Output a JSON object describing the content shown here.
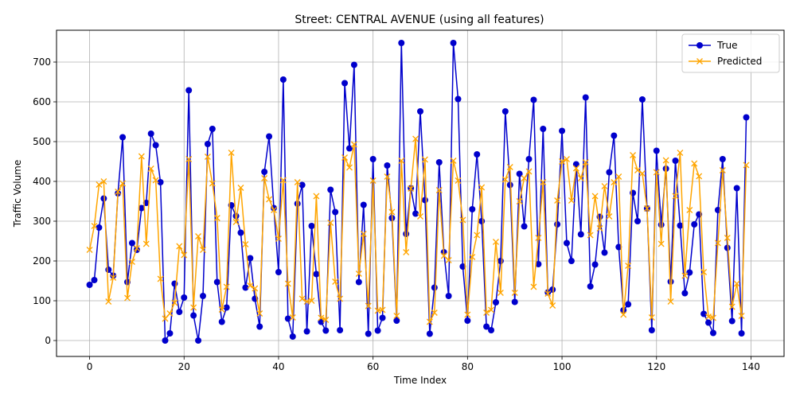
{
  "chart_data": {
    "type": "line",
    "title": "Street: CENTRAL AVENUE (using all features)",
    "xlabel": "Time Index",
    "ylabel": "Traffic Volume",
    "xlim": [
      -7,
      147
    ],
    "ylim": [
      -40,
      780
    ],
    "x_ticks": [
      0,
      20,
      40,
      60,
      80,
      100,
      120,
      140
    ],
    "y_ticks": [
      0,
      100,
      200,
      300,
      400,
      500,
      600,
      700
    ],
    "grid": true,
    "legend_position": "top-right",
    "x": [
      0,
      1,
      2,
      3,
      4,
      5,
      6,
      7,
      8,
      9,
      10,
      11,
      12,
      13,
      14,
      15,
      16,
      17,
      18,
      19,
      20,
      21,
      22,
      23,
      24,
      25,
      26,
      27,
      28,
      29,
      30,
      31,
      32,
      33,
      34,
      35,
      36,
      37,
      38,
      39,
      40,
      41,
      42,
      43,
      44,
      45,
      46,
      47,
      48,
      49,
      50,
      51,
      52,
      53,
      54,
      55,
      56,
      57,
      58,
      59,
      60,
      61,
      62,
      63,
      64,
      65,
      66,
      67,
      68,
      69,
      70,
      71,
      72,
      73,
      74,
      75,
      76,
      77,
      78,
      79,
      80,
      81,
      82,
      83,
      84,
      85,
      86,
      87,
      88,
      89,
      90,
      91,
      92,
      93,
      94,
      95,
      96,
      97,
      98,
      99,
      100,
      101,
      102,
      103,
      104,
      105,
      106,
      107,
      108,
      109,
      110,
      111,
      112,
      113,
      114,
      115,
      116,
      117,
      118,
      119,
      120,
      121,
      122,
      123,
      124,
      125,
      126,
      127,
      128,
      129,
      130,
      131,
      132,
      133,
      134,
      135,
      136,
      137,
      138,
      139
    ],
    "series": [
      {
        "name": "True",
        "color": "#0000cc",
        "marker": "circle",
        "values": [
          140,
          152,
          284,
          357,
          178,
          163,
          370,
          511,
          147,
          245,
          228,
          333,
          346,
          520,
          491,
          398,
          0,
          18,
          143,
          72,
          108,
          629,
          63,
          0,
          112,
          494,
          532,
          147,
          47,
          83,
          340,
          313,
          271,
          133,
          207,
          105,
          35,
          424,
          513,
          333,
          172,
          656,
          55,
          10,
          344,
          391,
          23,
          288,
          167,
          47,
          25,
          379,
          323,
          26,
          647,
          483,
          693,
          147,
          341,
          17,
          456,
          25,
          57,
          440,
          308,
          50,
          748,
          268,
          383,
          319,
          576,
          353,
          17,
          133,
          448,
          222,
          112,
          748,
          607,
          186,
          50,
          330,
          468,
          300,
          35,
          26,
          96,
          200,
          576,
          391,
          97,
          419,
          287,
          456,
          605,
          192,
          532,
          121,
          128,
          292,
          527,
          245,
          200,
          443,
          267,
          611,
          136,
          191,
          311,
          221,
          423,
          515,
          235,
          76,
          91,
          371,
          300,
          606,
          332,
          26,
          477,
          291,
          432,
          148,
          452,
          289,
          119,
          171,
          292,
          317,
          67,
          45,
          19,
          328,
          456,
          233,
          49,
          383,
          18,
          561
        ]
      },
      {
        "name": "Predicted",
        "color": "#ffa500",
        "marker": "x",
        "values": [
          228,
          288,
          392,
          400,
          98,
          158,
          374,
          395,
          107,
          198,
          232,
          463,
          243,
          432,
          403,
          155,
          55,
          68,
          95,
          237,
          215,
          456,
          83,
          262,
          228,
          462,
          395,
          308,
          78,
          135,
          472,
          298,
          384,
          242,
          138,
          131,
          68,
          408,
          355,
          328,
          256,
          403,
          143,
          58,
          398,
          105,
          98,
          100,
          363,
          57,
          52,
          296,
          148,
          105,
          460,
          435,
          493,
          168,
          268,
          87,
          402,
          75,
          77,
          412,
          323,
          62,
          452,
          222,
          382,
          507,
          312,
          455,
          47,
          70,
          378,
          213,
          202,
          452,
          402,
          303,
          65,
          210,
          265,
          385,
          70,
          77,
          248,
          120,
          405,
          436,
          120,
          350,
          408,
          425,
          135,
          258,
          398,
          118,
          88,
          352,
          450,
          456,
          352,
          433,
          408,
          448,
          265,
          363,
          282,
          388,
          312,
          398,
          412,
          65,
          188,
          466,
          428,
          420,
          332,
          58,
          423,
          243,
          453,
          98,
          363,
          472,
          163,
          328,
          445,
          413,
          172,
          60,
          57,
          245,
          428,
          258,
          85,
          143,
          62,
          441
        ]
      }
    ]
  }
}
